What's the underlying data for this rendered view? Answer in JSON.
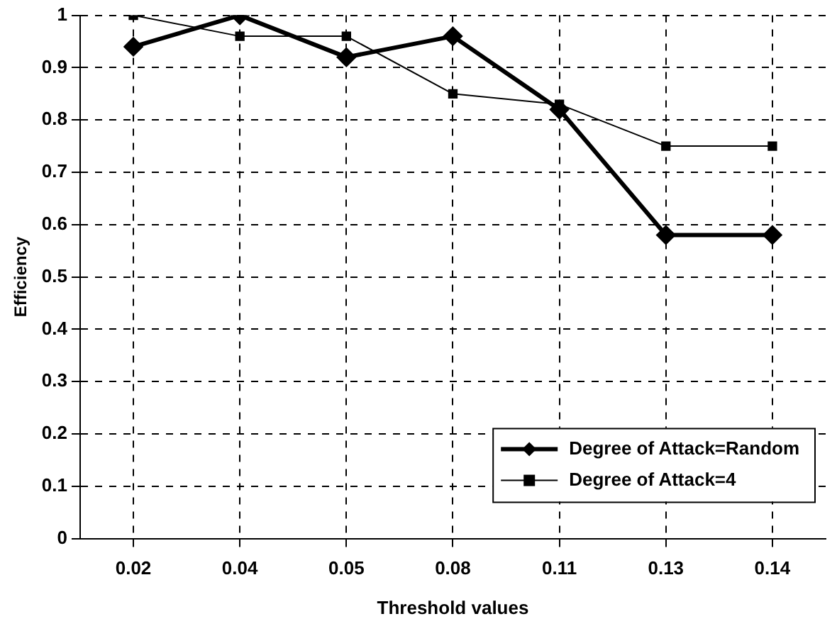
{
  "chart_data": {
    "type": "line",
    "xlabel": "Threshold values",
    "ylabel": "Efficiency",
    "categories": [
      "0.02",
      "0.04",
      "0.05",
      "0.08",
      "0.11",
      "0.13",
      "0.14"
    ],
    "series": [
      {
        "name": "Degree of Attack=Random",
        "color": "#000000",
        "marker": "diamond",
        "values": [
          0.94,
          1.0,
          0.92,
          0.96,
          0.82,
          0.58,
          0.58
        ]
      },
      {
        "name": "Degree of Attack=4",
        "color": "#000000",
        "marker": "square",
        "values": [
          1.0,
          0.96,
          0.96,
          0.85,
          0.83,
          0.75,
          0.75
        ]
      }
    ],
    "ylim": [
      0,
      1
    ],
    "yticks": [
      0,
      0.1,
      0.2,
      0.3,
      0.4,
      0.5,
      0.6,
      0.7,
      0.8,
      0.9,
      1
    ],
    "grid": true,
    "line_style": "solid",
    "legend": "bottom right"
  }
}
